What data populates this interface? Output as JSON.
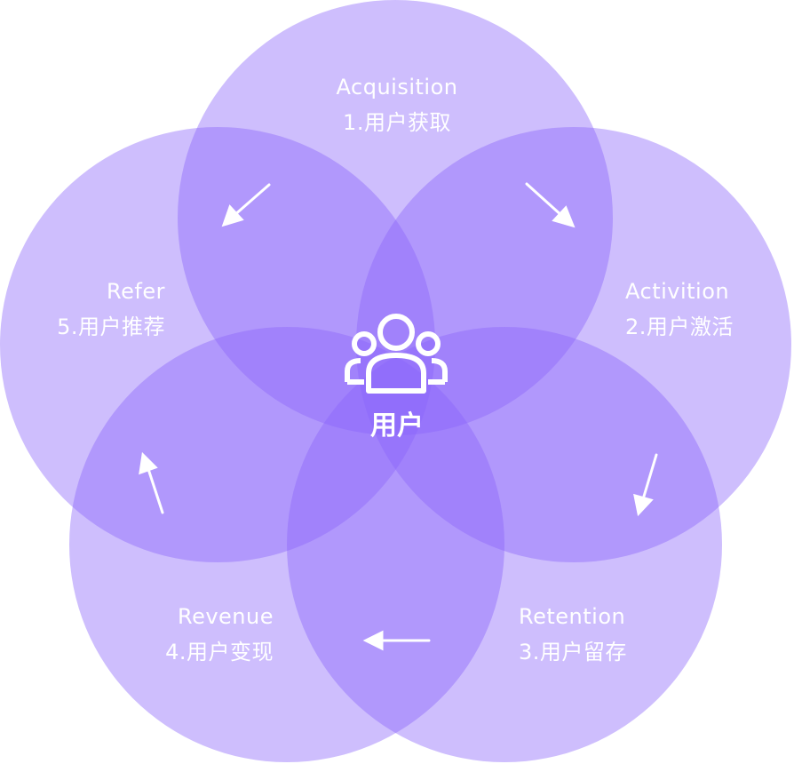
{
  "center": {
    "label": "用户",
    "icon": "users-group-icon"
  },
  "stages": [
    {
      "id": "acquisition",
      "english": "Acquisition",
      "chinese": "1.用户获取"
    },
    {
      "id": "activation",
      "english": "Activition",
      "chinese": "2.用户激活"
    },
    {
      "id": "retention",
      "english": "Retention",
      "chinese": "3.用户留存"
    },
    {
      "id": "revenue",
      "english": "Revenue",
      "chinese": "4.用户变现"
    },
    {
      "id": "refer",
      "english": "Refer",
      "chinese": "5.用户推荐"
    }
  ],
  "colors": {
    "circle_fill": "#8a63fb",
    "circle_opacity": "0.42",
    "text": "#ffffff",
    "arrow": "#ffffff"
  },
  "arrow_direction": "clockwise"
}
